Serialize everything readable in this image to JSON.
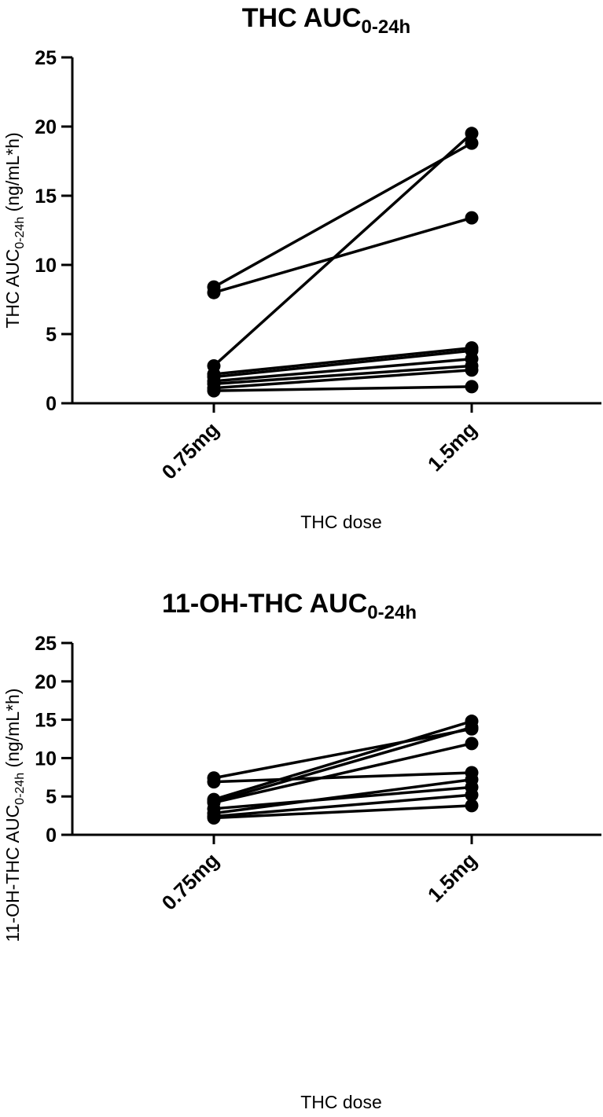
{
  "chart_data": [
    {
      "type": "line",
      "title": "THC AUC",
      "title_sub": "0-24h",
      "xlabel": "THC dose",
      "ylabel": "THC AUC",
      "ylabel_sub": "0-24h",
      "ylabel_suffix": " (ng/mL*h)",
      "categories": [
        "0.75mg",
        "1.5mg"
      ],
      "ylim": [
        0,
        25
      ],
      "yticks": [
        "0",
        "5",
        "10",
        "15",
        "20",
        "25"
      ],
      "series": [
        {
          "values": [
            8.4,
            18.8
          ]
        },
        {
          "values": [
            8.0,
            13.4
          ]
        },
        {
          "values": [
            2.7,
            19.5
          ]
        },
        {
          "values": [
            2.1,
            4.0
          ]
        },
        {
          "values": [
            1.9,
            3.8
          ]
        },
        {
          "values": [
            1.6,
            3.2
          ]
        },
        {
          "values": [
            1.4,
            2.7
          ]
        },
        {
          "values": [
            1.1,
            2.4
          ]
        },
        {
          "values": [
            0.9,
            1.2
          ]
        }
      ]
    },
    {
      "type": "line",
      "title": "11-OH-THC AUC",
      "title_sub": "0-24h",
      "xlabel": "THC dose",
      "ylabel": "11-OH-THC AUC",
      "ylabel_sub": "0-24h",
      "ylabel_suffix": " (ng/mL*h)",
      "categories": [
        "0.75mg",
        "1.5mg"
      ],
      "ylim": [
        0,
        25
      ],
      "yticks": [
        "0",
        "5",
        "10",
        "15",
        "20",
        "25"
      ],
      "series": [
        {
          "values": [
            7.4,
            13.8
          ]
        },
        {
          "values": [
            6.9,
            8.1
          ]
        },
        {
          "values": [
            4.6,
            14.8
          ]
        },
        {
          "values": [
            4.3,
            14.0
          ]
        },
        {
          "values": [
            4.2,
            11.9
          ]
        },
        {
          "values": [
            3.4,
            6.2
          ]
        },
        {
          "values": [
            2.8,
            7.2
          ]
        },
        {
          "values": [
            2.4,
            5.2
          ]
        },
        {
          "values": [
            2.2,
            3.8
          ]
        }
      ]
    }
  ]
}
